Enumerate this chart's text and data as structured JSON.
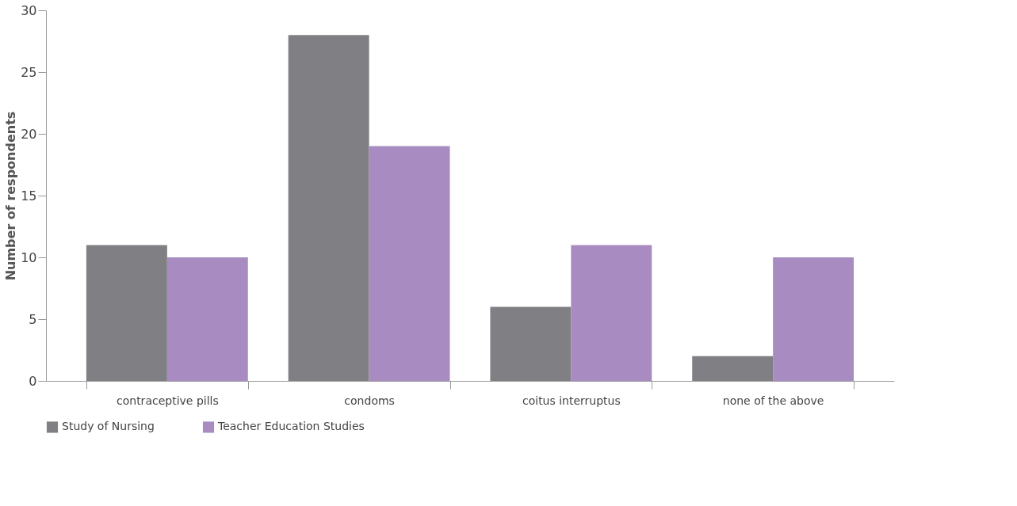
{
  "chart_data": {
    "type": "bar",
    "ylabel": "Number of respondents",
    "categories": [
      "contraceptive pills",
      "condoms",
      "coitus interruptus",
      "none of the above"
    ],
    "series": [
      {
        "name": "Study of Nursing",
        "color": "#7f7f84",
        "values": [
          11,
          28,
          6,
          2
        ]
      },
      {
        "name": "Teacher Education Studies",
        "color": "#a78bc1",
        "values": [
          10,
          19,
          11,
          10
        ]
      }
    ],
    "ylim": [
      0,
      30
    ],
    "yticks": [
      0,
      5,
      10,
      15,
      20,
      25,
      30
    ],
    "grid": false,
    "legend": "bottom"
  }
}
